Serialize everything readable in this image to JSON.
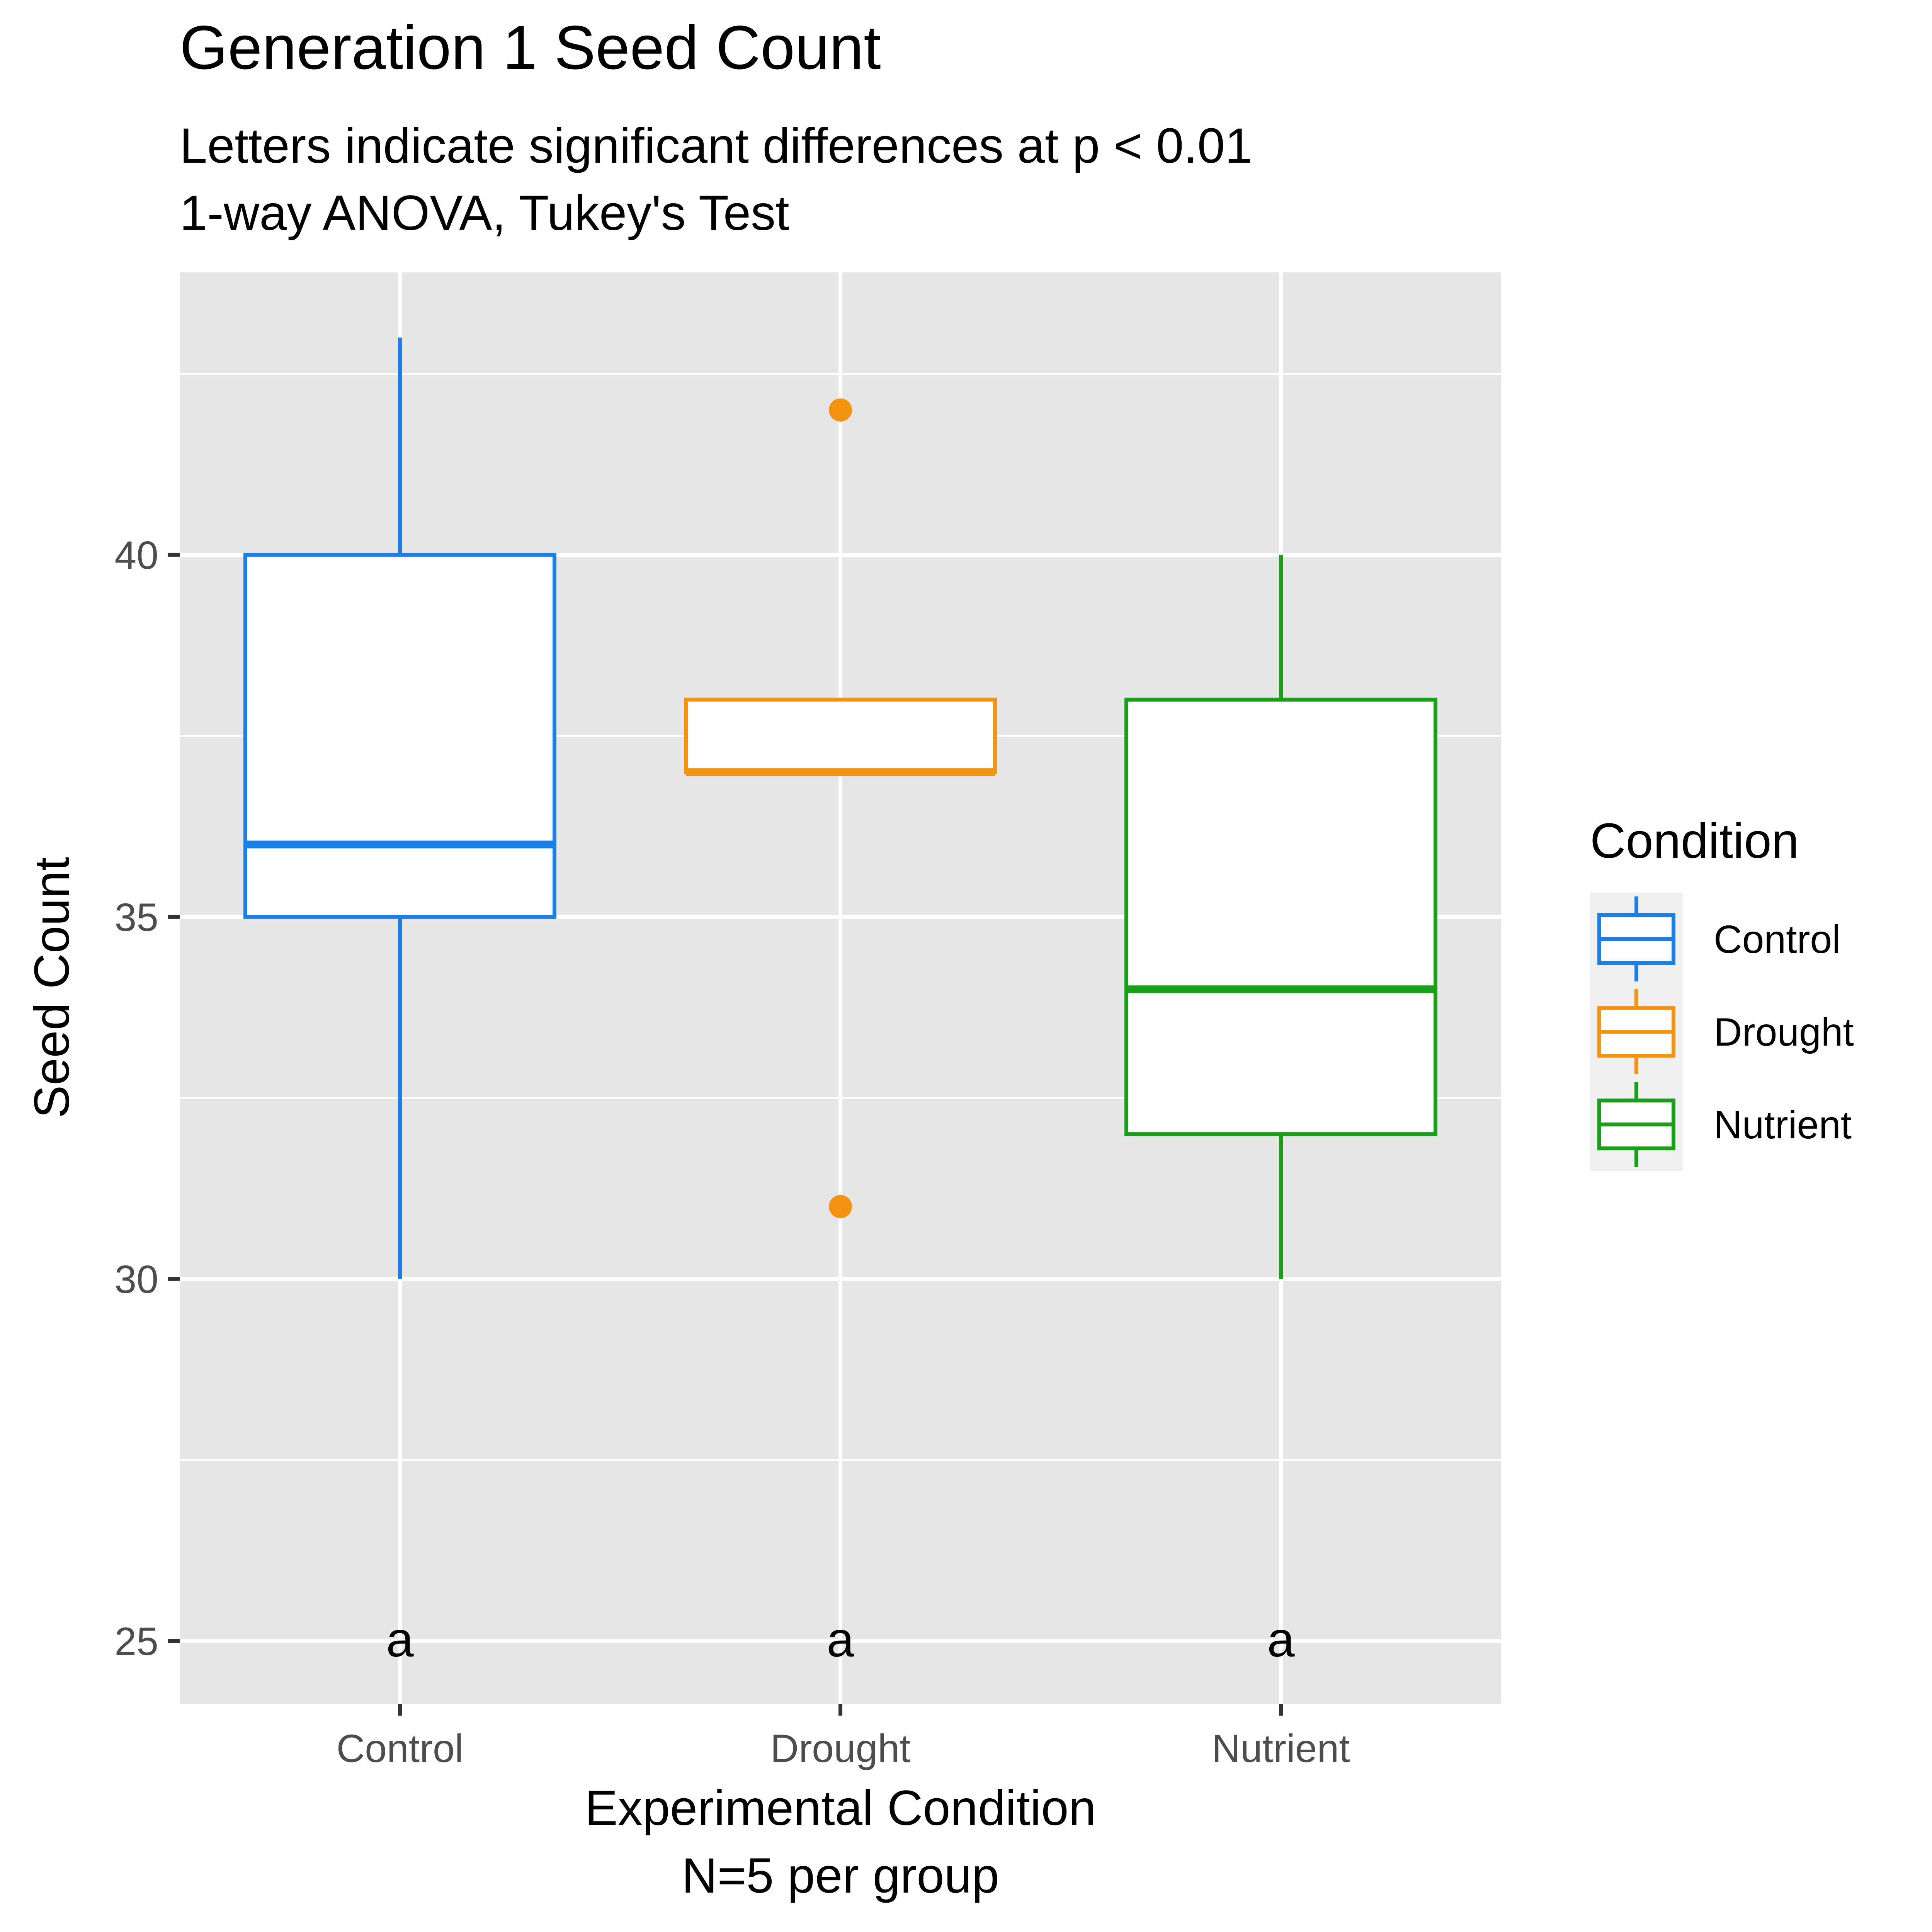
{
  "chart_data": {
    "type": "box",
    "title": "Generation 1 Seed Count",
    "subtitle": [
      "Letters indicate significant differences at p < 0.01",
      "1-way ANOVA, Tukey's Test"
    ],
    "xlabel": [
      "Experimental Condition",
      "N=5 per group"
    ],
    "ylabel": "Seed Count",
    "ylim": [
      24.13,
      43.9
    ],
    "y_ticks": [
      25,
      30,
      35,
      40
    ],
    "y_tick_labels": [
      "25",
      "30",
      "35",
      "40"
    ],
    "y_minor_gridlines": [
      27.5,
      32.5,
      37.5,
      42.5
    ],
    "grid": true,
    "categories": [
      "Control",
      "Drought",
      "Nutrient"
    ],
    "series": [
      {
        "name": "Control",
        "color": "#1a80e8",
        "whisker_low": 30,
        "q1": 35,
        "median": 36,
        "q3": 40,
        "whisker_high": 43,
        "outliers": [],
        "letter": "a",
        "letter_y": 25
      },
      {
        "name": "Drought",
        "color": "#f2940f",
        "whisker_low": 37,
        "q1": 37,
        "median": 37,
        "q3": 38,
        "whisker_high": 38,
        "outliers": [
          31,
          42
        ],
        "letter": "a",
        "letter_y": 25
      },
      {
        "name": "Nutrient",
        "color": "#18a018",
        "whisker_low": 30,
        "q1": 32,
        "median": 34,
        "q3": 38,
        "whisker_high": 40,
        "outliers": [],
        "letter": "a",
        "letter_y": 25
      }
    ],
    "legend": {
      "title": "Condition",
      "position": "right",
      "entries": [
        "Control",
        "Drought",
        "Nutrient"
      ]
    },
    "colors": {
      "panel_background": "#e6e6e6",
      "gridline": "#ffffff",
      "box_fill": "#ffffff",
      "axis_text": "#4d4d4d",
      "title_text": "#000000",
      "legend_key_background": "#f0f0f0"
    }
  }
}
